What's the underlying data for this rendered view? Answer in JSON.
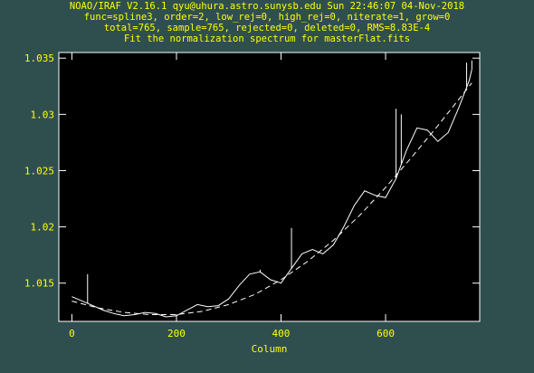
{
  "header": {
    "line1": "NOAO/IRAF V2.16.1 qyu@uhura.astro.sunysb.edu Sun 22:46:07 04-Nov-2018",
    "line2": "func=spline3, order=2, low_rej=0, high_rej=0, niterate=1, grow=0",
    "line3": "total=765, sample=765, rejected=0, deleted=0, RMS=8.83E-4",
    "line4": "Fit the normalization spectrum for masterFlat.fits"
  },
  "colors": {
    "background": "#2f4f4f",
    "text": "#ffff00",
    "plot_bg": "#000000",
    "data": "#ffffff"
  },
  "chart_data": {
    "type": "line",
    "title": "Fit the normalization spectrum for masterFlat.fits",
    "xlabel": "Column",
    "ylabel": "",
    "xlim": [
      -25,
      780
    ],
    "ylim": [
      1.0116,
      1.0355
    ],
    "xticks": [
      0,
      200,
      400,
      600
    ],
    "yticks": [
      1.015,
      1.02,
      1.025,
      1.03,
      1.035
    ],
    "ytick_labels": [
      "1.015",
      "1.02",
      "1.025",
      "1.03",
      "1.035"
    ],
    "series": [
      {
        "style": "solid",
        "x": [
          0,
          20,
          40,
          60,
          80,
          100,
          120,
          140,
          160,
          180,
          200,
          220,
          240,
          260,
          280,
          300,
          320,
          340,
          360,
          380,
          400,
          420,
          440,
          460,
          480,
          500,
          520,
          540,
          560,
          580,
          600,
          620,
          640,
          660,
          680,
          700,
          720,
          740,
          760,
          765
        ],
        "y": [
          1.0138,
          1.0134,
          1.013,
          1.0126,
          1.0123,
          1.0121,
          1.0122,
          1.0124,
          1.0123,
          1.012,
          1.0121,
          1.0126,
          1.0131,
          1.0129,
          1.013,
          1.0136,
          1.0148,
          1.0158,
          1.016,
          1.0153,
          1.015,
          1.0163,
          1.0176,
          1.018,
          1.0176,
          1.0184,
          1.02,
          1.0219,
          1.0232,
          1.0228,
          1.0226,
          1.0243,
          1.0268,
          1.0288,
          1.0286,
          1.0276,
          1.0284,
          1.0306,
          1.033,
          1.034
        ],
        "spikes": [
          {
            "x": 30,
            "y": 1.0158
          },
          {
            "x": 360,
            "y": 1.0162
          },
          {
            "x": 420,
            "y": 1.0199
          },
          {
            "x": 620,
            "y": 1.0305
          },
          {
            "x": 630,
            "y": 1.03
          },
          {
            "x": 755,
            "y": 1.0346
          },
          {
            "x": 765,
            "y": 1.0348
          }
        ]
      },
      {
        "style": "dashed",
        "x": [
          0,
          50,
          100,
          150,
          200,
          250,
          300,
          350,
          400,
          450,
          500,
          550,
          600,
          650,
          700,
          765
        ],
        "y": [
          1.0134,
          1.0128,
          1.0124,
          1.0122,
          1.0122,
          1.0125,
          1.0131,
          1.014,
          1.0153,
          1.0169,
          1.0188,
          1.021,
          1.0235,
          1.0262,
          1.029,
          1.0328
        ]
      }
    ]
  }
}
